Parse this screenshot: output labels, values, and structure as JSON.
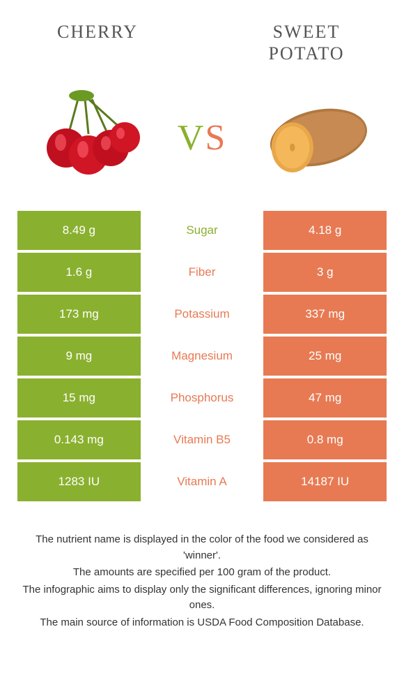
{
  "colors": {
    "left_bg": "#8ab02f",
    "right_bg": "#e77a53",
    "left_text": "#ffffff",
    "right_text": "#ffffff",
    "mid_left": "#8ab02f",
    "mid_right": "#e77a53"
  },
  "header": {
    "left_title": "CHERRY",
    "right_title": "SWEET POTATO"
  },
  "vs": {
    "v": "V",
    "s": "S"
  },
  "rows": [
    {
      "left": "8.49 g",
      "label": "Sugar",
      "right": "4.18 g",
      "winner": "left"
    },
    {
      "left": "1.6 g",
      "label": "Fiber",
      "right": "3 g",
      "winner": "right"
    },
    {
      "left": "173 mg",
      "label": "Potassium",
      "right": "337 mg",
      "winner": "right"
    },
    {
      "left": "9 mg",
      "label": "Magnesium",
      "right": "25 mg",
      "winner": "right"
    },
    {
      "left": "15 mg",
      "label": "Phosphorus",
      "right": "47 mg",
      "winner": "right"
    },
    {
      "left": "0.143 mg",
      "label": "Vitamin B5",
      "right": "0.8 mg",
      "winner": "right"
    },
    {
      "left": "1283 IU",
      "label": "Vitamin A",
      "right": "14187 IU",
      "winner": "right"
    }
  ],
  "footer": {
    "line1": "The nutrient name is displayed in the color of the food we considered as 'winner'.",
    "line2": "The amounts are specified per 100 gram of the product.",
    "line3": "The infographic aims to display only the significant differences, ignoring minor ones.",
    "line4": "The main source of information is USDA Food Composition Database."
  }
}
